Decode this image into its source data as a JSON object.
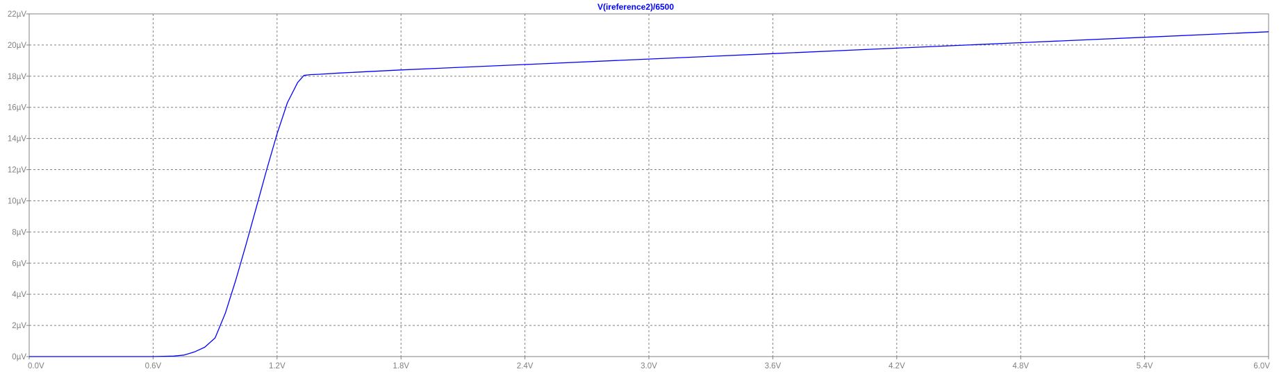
{
  "colors": {
    "background": "#ffffff",
    "axes": "#808080",
    "grid": "#808080",
    "tick_text": "#808080",
    "trace": "#0000ff",
    "title": "#0000ff"
  },
  "chart_data": {
    "type": "line",
    "title": "V(ireference2)/6500",
    "xlabel": "",
    "ylabel": "",
    "grid": true,
    "xlim": [
      0,
      6.0
    ],
    "ylim": [
      0,
      22
    ],
    "x_ticks": [
      "0.0V",
      "0.6V",
      "1.2V",
      "1.8V",
      "2.4V",
      "3.0V",
      "3.6V",
      "4.2V",
      "4.8V",
      "5.4V",
      "6.0V"
    ],
    "x_tick_values": [
      0,
      0.6,
      1.2,
      1.8,
      2.4,
      3.0,
      3.6,
      4.2,
      4.8,
      5.4,
      6.0
    ],
    "y_ticks": [
      "0µV",
      "2µV",
      "4µV",
      "6µV",
      "8µV",
      "10µV",
      "12µV",
      "14µV",
      "16µV",
      "18µV",
      "20µV",
      "22µV"
    ],
    "y_tick_values": [
      0,
      2,
      4,
      6,
      8,
      10,
      12,
      14,
      16,
      18,
      20,
      22
    ],
    "series": [
      {
        "name": "V(ireference2)/6500",
        "x": [
          0,
          0.6,
          0.7,
          0.75,
          0.8,
          0.85,
          0.9,
          0.95,
          1.0,
          1.05,
          1.1,
          1.15,
          1.2,
          1.25,
          1.3,
          1.33,
          1.36,
          1.4,
          1.5,
          1.8,
          2.4,
          3.0,
          3.6,
          4.2,
          4.8,
          5.4,
          6.0
        ],
        "y": [
          0,
          0,
          0.03,
          0.1,
          0.3,
          0.6,
          1.2,
          2.8,
          4.9,
          7.2,
          9.6,
          12.0,
          14.3,
          16.3,
          17.6,
          18.05,
          18.1,
          18.12,
          18.2,
          18.4,
          18.75,
          19.1,
          19.45,
          19.8,
          20.15,
          20.5,
          20.85
        ]
      }
    ]
  }
}
